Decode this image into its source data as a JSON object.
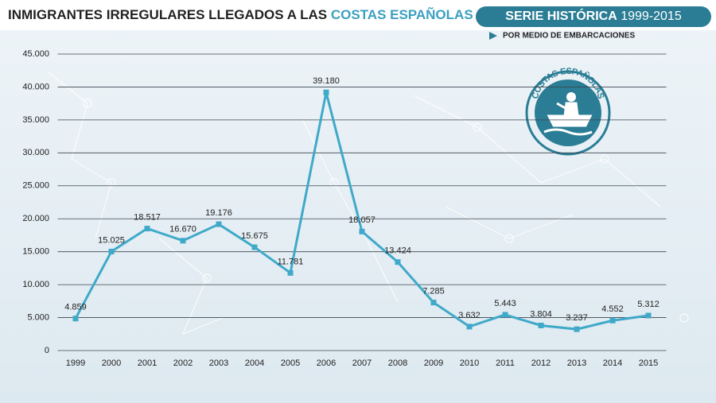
{
  "chart_data": {
    "type": "line",
    "title": "INMIGRANTES IRREGULARES LLEGADOS A LAS",
    "title_highlight": "COSTAS ESPAÑOLAS",
    "badge_title": "SERIE HISTÓRICA",
    "badge_years": "1999-2015",
    "logo_text": "COSTAS ESPAÑOLAS",
    "categories": [
      "1999",
      "2000",
      "2001",
      "2002",
      "2003",
      "2004",
      "2005",
      "2006",
      "2007",
      "2008",
      "2009",
      "2010",
      "2011",
      "2012",
      "2013",
      "2014",
      "2015"
    ],
    "series": [
      {
        "name": "POR MEDIO DE EMBARCACIONES",
        "color": "#3fa9c9",
        "values": [
          4859,
          15025,
          18517,
          16670,
          19176,
          15675,
          11781,
          39180,
          18057,
          13424,
          7285,
          3632,
          5443,
          3804,
          3237,
          4552,
          5312
        ],
        "value_labels": [
          "4.859",
          "15.025",
          "18.517",
          "16.670",
          "19.176",
          "15.675",
          "11.781",
          "39.180",
          "18.057",
          "13.424",
          "7.285",
          "3.632",
          "5.443",
          "3.804",
          "3.237",
          "4.552",
          "5.312"
        ]
      }
    ],
    "ylim": [
      0,
      45000
    ],
    "yticks": [
      0,
      {
        "value": 5000,
        "label": "5.000"
      },
      {
        "value": 10000,
        "label": "10.000"
      },
      {
        "value": 15000,
        "label": "15.000"
      },
      {
        "value": 20000,
        "label": "20.000"
      },
      {
        "value": 25000,
        "label": "25.000"
      },
      {
        "value": 30000,
        "label": "30.000"
      },
      {
        "value": 35000,
        "label": "35.000"
      },
      {
        "value": 40000,
        "label": "40.000"
      },
      {
        "value": 45000,
        "label": "45.000"
      }
    ],
    "grid": true
  }
}
